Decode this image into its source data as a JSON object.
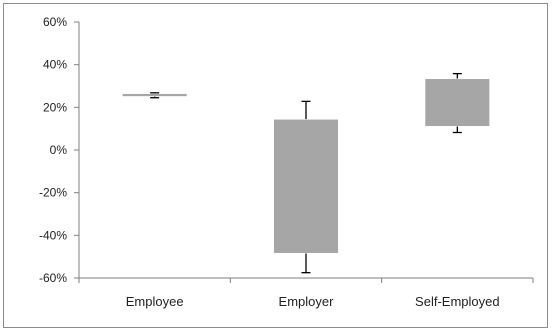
{
  "chart_data": {
    "type": "floating-bar",
    "title": "",
    "xlabel": "",
    "ylabel": "",
    "ylim": [
      -60,
      60
    ],
    "yticks": [
      -60,
      -40,
      -20,
      0,
      20,
      40,
      60
    ],
    "ytick_labels": [
      "-60%",
      "-40%",
      "-20%",
      "0%",
      "20%",
      "40%",
      "60%"
    ],
    "grid": false,
    "legend": "none",
    "categories": [
      "Employee",
      "Employer",
      "Self-Employed"
    ],
    "bars": [
      {
        "low": 25,
        "high": 26.5,
        "error_low": 24.5,
        "error_high": 26.8
      },
      {
        "low": -48.5,
        "high": 14.5,
        "error_low": -57.5,
        "error_high": 22.8
      },
      {
        "low": 11,
        "high": 33.5,
        "error_low": 8.2,
        "error_high": 35.8
      }
    ],
    "bar_color": "#a6a6a6"
  }
}
